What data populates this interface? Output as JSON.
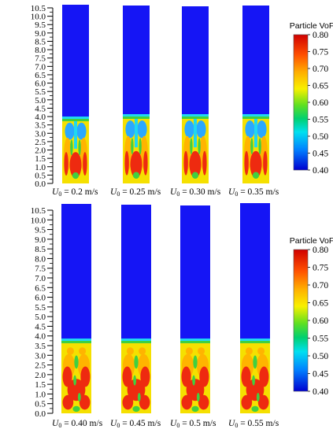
{
  "colorbar": {
    "title": "Particle VoF",
    "ticks": [
      "0.80",
      "0.75",
      "0.70",
      "0.65",
      "0.60",
      "0.55",
      "0.50",
      "0.45",
      "0.40"
    ]
  },
  "colors": {
    "air": "#1515f5",
    "bed": "#f5e000",
    "dense": "#ee2a10",
    "mid": "#ffb400",
    "green": "#40d040",
    "cyan": "#20d8f0",
    "lightblue": "#2aa8ff"
  },
  "axis_ticks": [
    "10.5",
    "10.0",
    "9.5",
    "9.0",
    "8.5",
    "8.0",
    "7.5",
    "7.0",
    "6.5",
    "6.0",
    "5.5",
    "5.0",
    "4.5",
    "4.0",
    "3.5",
    "3.0",
    "2.5",
    "2.0",
    "1.5",
    "1.0",
    "0.5",
    "0.0"
  ],
  "panels": [
    {
      "captions": [
        {
          "sym": "U",
          "sub": "0",
          "rest": " = 0.2 m/s"
        },
        {
          "sym": "U",
          "sub": "0",
          "rest": " = 0.25 m/s"
        },
        {
          "sym": "U",
          "sub": "0",
          "rest": " = 0.30 m/s"
        },
        {
          "sym": "U",
          "sub": "0",
          "rest": " = 0.35 m/s"
        }
      ]
    },
    {
      "captions": [
        {
          "sym": "U",
          "sub": "0",
          "rest": " = 0.40 m/s"
        },
        {
          "sym": "U",
          "sub": "0",
          "rest": " = 0.45 m/s"
        },
        {
          "sym": "U",
          "sub": "0",
          "rest": " = 0.5 m/s"
        },
        {
          "sym": "U",
          "sub": "0",
          "rest": " = 0.55 m/s"
        }
      ]
    }
  ]
}
